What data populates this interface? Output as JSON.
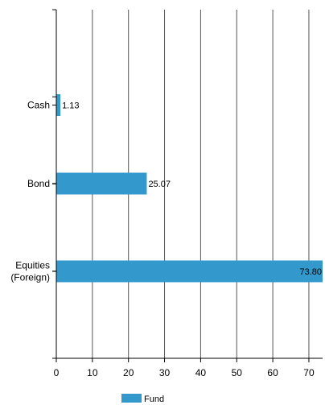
{
  "chart_data": {
    "type": "bar",
    "orientation": "horizontal",
    "categories": [
      "Cash",
      "Bond",
      "Equities (Foreign)"
    ],
    "category_lines": [
      [
        "Cash"
      ],
      [
        "Bond"
      ],
      [
        "Equities",
        "(Foreign)"
      ]
    ],
    "series": [
      {
        "name": "Fund",
        "values": [
          1.13,
          25.07,
          73.8
        ],
        "labels": [
          "1.13",
          "25.07",
          "73.80"
        ],
        "color": "#3399cc"
      }
    ],
    "xlim": [
      0,
      73.8
    ],
    "xticks": [
      0,
      10,
      20,
      30,
      40,
      50,
      60,
      70
    ],
    "grid": "vertical",
    "legend": "bottom-center",
    "title": "",
    "xlabel": "",
    "ylabel": ""
  }
}
